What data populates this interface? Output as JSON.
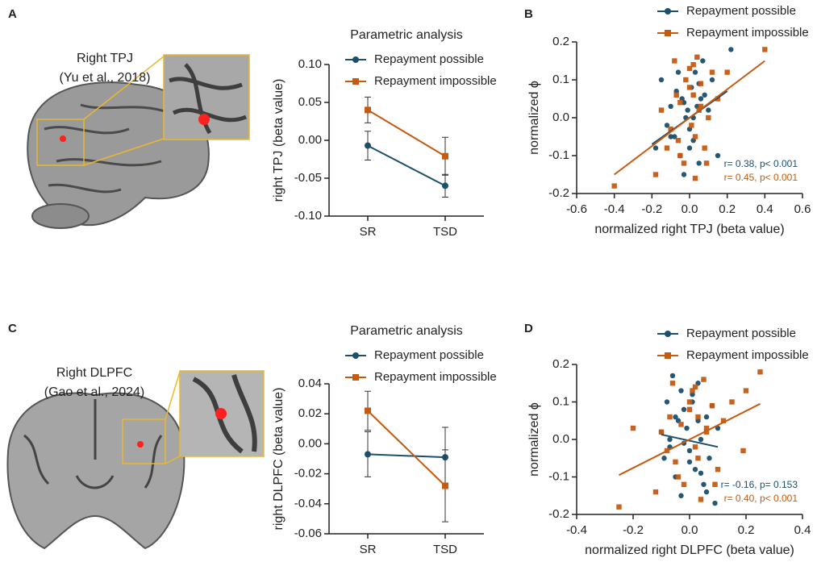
{
  "figure": {
    "panel_labels": [
      "A",
      "B",
      "C",
      "D"
    ],
    "images": [
      {
        "caption": [
          "Right TPJ",
          "(Yu et al., 2018)"
        ]
      },
      {
        "caption": [
          "Right DLPFC",
          "(Gao et al., 2024)"
        ]
      }
    ]
  },
  "chart_data": [
    {
      "type": "line",
      "title": "Parametric analysis",
      "ylabel": "right TPJ (beta value)",
      "categories": [
        "SR",
        "TSD"
      ],
      "ylim": [
        -0.1,
        0.1
      ],
      "yticks": [
        {
          "value": -0.1,
          "label": "-0.10"
        },
        -0.05,
        {
          "value": 0,
          "label": "0.00"
        },
        0.05,
        {
          "value": 0.1,
          "label": "0.10"
        }
      ],
      "series": [
        {
          "name": "Repayment possible",
          "color": "#1b4f6b",
          "marker": "circle",
          "values": [
            -0.007,
            -0.06
          ],
          "errors": [
            0.019,
            0.015
          ]
        },
        {
          "name": "Repayment impossible",
          "color": "#c55a11",
          "marker": "square",
          "values": [
            0.04,
            -0.021
          ],
          "errors": [
            0.017,
            0.025
          ]
        }
      ]
    },
    {
      "type": "scatter",
      "xlabel": "normalized right TPJ (beta value)",
      "ylabel": "normalized ϕ",
      "xlim": [
        -0.6,
        0.6
      ],
      "ylim": [
        -0.2,
        0.2
      ],
      "xticks": [
        -0.6,
        -0.4,
        -0.2,
        {
          "value": 0,
          "label": "0.0"
        },
        0.2,
        0.4,
        0.6
      ],
      "yticks": [
        -0.2,
        -0.1,
        {
          "value": 0,
          "label": "0.0"
        },
        0.1,
        0.2
      ],
      "annotations": [
        {
          "text": "r= 0.38, p< 0.001",
          "color": "#1b4f6b"
        },
        {
          "text": "r= 0.45, p< 0.001",
          "color": "#c55a11"
        }
      ],
      "series": [
        {
          "name": "Repayment possible",
          "color": "#1b4f6b",
          "marker": "circle",
          "x": [
            -0.18,
            -0.15,
            -0.12,
            -0.1,
            -0.08,
            -0.07,
            -0.05,
            -0.04,
            -0.03,
            -0.02,
            -0.01,
            0,
            0.01,
            0.02,
            0.03,
            0.04,
            0.05,
            0.06,
            0.07,
            0.08,
            0.1,
            0.12,
            0.15,
            0.22,
            -0.06,
            0.0,
            0.02,
            -0.1,
            0.05,
            -0.03
          ],
          "values": [
            -0.08,
            0.1,
            -0.02,
            0.03,
            -0.05,
            0.07,
            -0.1,
            0.05,
            -0.15,
            0.0,
            0.02,
            -0.03,
            0.08,
            -0.06,
            0.12,
            0.03,
            -0.12,
            0.05,
            0.15,
            0.06,
            0.02,
            0.1,
            -0.1,
            0.18,
            0.12,
            -0.08,
            0.0,
            -0.05,
            0.09,
            0.04
          ],
          "fit": {
            "x": [
              -0.2,
              0.2
            ],
            "y": [
              -0.07,
              0.07
            ]
          }
        },
        {
          "name": "Repayment impossible",
          "color": "#c55a11",
          "marker": "square",
          "x": [
            -0.4,
            -0.18,
            -0.15,
            -0.1,
            -0.08,
            -0.06,
            -0.05,
            -0.03,
            -0.02,
            0,
            0.01,
            0.02,
            0.03,
            0.04,
            0.05,
            0.06,
            0.08,
            0.1,
            0.12,
            0.15,
            0.2,
            0.4,
            -0.05,
            0.0,
            -0.07,
            0.03,
            0.09,
            -0.12,
            0.02,
            0.06
          ],
          "values": [
            -0.18,
            -0.15,
            0.02,
            -0.03,
            0.15,
            -0.06,
            0.04,
            -0.12,
            0.1,
            0.13,
            -0.02,
            0.06,
            -0.16,
            0.16,
            0.02,
            0.09,
            -0.08,
            0.0,
            0.12,
            0.05,
            0.12,
            0.18,
            -0.1,
            0.08,
            0.06,
            -0.05,
            -0.12,
            -0.08,
            0.14,
            0.03
          ],
          "fit": {
            "x": [
              -0.4,
              0.4
            ],
            "y": [
              -0.15,
              0.15
            ]
          }
        }
      ]
    },
    {
      "type": "line",
      "title": "Parametric analysis",
      "ylabel": "right DLPFC (beta value)",
      "categories": [
        "SR",
        "TSD"
      ],
      "ylim": [
        -0.06,
        0.04
      ],
      "yticks": [
        -0.06,
        -0.04,
        -0.02,
        {
          "value": 0,
          "label": "0.00"
        },
        0.02,
        0.04
      ],
      "series": [
        {
          "name": "Repayment possible",
          "color": "#1b4f6b",
          "marker": "circle",
          "values": [
            -0.007,
            -0.009
          ],
          "errors": [
            0.015,
            0.02
          ]
        },
        {
          "name": "Repayment impossible",
          "color": "#c55a11",
          "marker": "square",
          "values": [
            0.022,
            -0.028
          ],
          "errors": [
            0.013,
            0.024
          ]
        }
      ]
    },
    {
      "type": "scatter",
      "xlabel": "normalized right DLPFC (beta value)",
      "ylabel": "normalized ϕ",
      "xlim": [
        -0.4,
        0.4
      ],
      "ylim": [
        -0.2,
        0.2
      ],
      "xticks": [
        -0.4,
        -0.2,
        {
          "value": 0,
          "label": "0.0"
        },
        0.2,
        0.4
      ],
      "yticks": [
        -0.2,
        -0.1,
        {
          "value": 0,
          "label": "0.0"
        },
        0.1,
        0.2
      ],
      "annotations": [
        {
          "text": "r= -0.16, p= 0.153",
          "color": "#1b4f6b"
        },
        {
          "text": "r= 0.40, p< 0.001",
          "color": "#c55a11"
        }
      ],
      "series": [
        {
          "name": "Repayment possible",
          "color": "#1b4f6b",
          "marker": "circle",
          "x": [
            -0.1,
            -0.09,
            -0.08,
            -0.07,
            -0.06,
            -0.05,
            -0.04,
            -0.03,
            -0.02,
            -0.01,
            0,
            0.01,
            0.02,
            0.03,
            0.04,
            0.05,
            0.06,
            0.07,
            0.08,
            0.09,
            0.1,
            -0.05,
            0.0,
            0.03,
            -0.02,
            0.06,
            -0.07,
            0.01,
            0.04,
            -0.03
          ],
          "values": [
            0.02,
            -0.05,
            0.1,
            0.0,
            0.17,
            -0.1,
            0.05,
            -0.15,
            0.08,
            0.03,
            -0.03,
            0.12,
            -0.08,
            0.15,
            0.0,
            -0.12,
            0.06,
            -0.05,
            0.09,
            -0.17,
            0.03,
            0.06,
            -0.06,
            0.05,
            -0.01,
            -0.14,
            -0.02,
            0.1,
            -0.09,
            0.13
          ],
          "fit": {
            "x": [
              -0.1,
              0.1
            ],
            "y": [
              0.013,
              -0.02
            ]
          }
        },
        {
          "name": "Repayment impossible",
          "color": "#c55a11",
          "marker": "square",
          "x": [
            -0.25,
            -0.2,
            -0.12,
            -0.1,
            -0.08,
            -0.06,
            -0.05,
            -0.03,
            -0.02,
            0,
            0.01,
            0.02,
            0.03,
            0.04,
            0.05,
            0.06,
            0.08,
            0.1,
            0.12,
            0.15,
            0.2,
            0.25,
            -0.04,
            0.0,
            -0.07,
            0.03,
            0.09,
            0.19,
            0.02,
            0.06
          ],
          "values": [
            -0.18,
            0.03,
            -0.14,
            0.02,
            -0.03,
            0.15,
            -0.06,
            0.04,
            -0.12,
            0.1,
            0.13,
            -0.02,
            0.06,
            -0.16,
            0.16,
            0.02,
            0.09,
            -0.08,
            0.05,
            0.1,
            0.13,
            0.18,
            -0.1,
            0.08,
            0.06,
            -0.05,
            -0.12,
            -0.03,
            0.14,
            0.03
          ],
          "fit": {
            "x": [
              -0.25,
              0.25
            ],
            "y": [
              -0.095,
              0.095
            ]
          }
        }
      ]
    }
  ]
}
